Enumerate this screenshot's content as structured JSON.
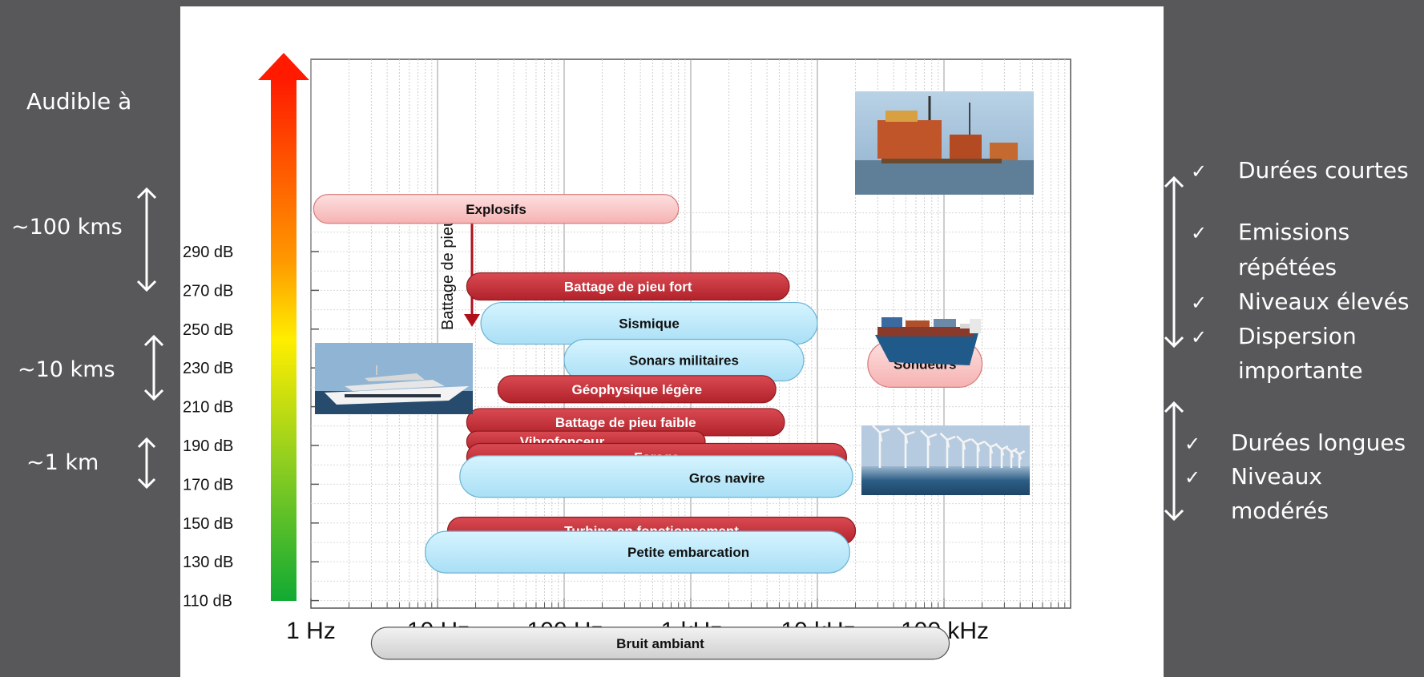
{
  "chart_data": {
    "type": "bar",
    "orientation": "horizontal-range",
    "xscale": "log",
    "x_ticks": [
      "1 Hz",
      "10 Hz",
      "100 Hz",
      "1 kHz",
      "10 kHz",
      "100 kHz"
    ],
    "y_ticks": [
      "110 dB",
      "130 dB",
      "150 dB",
      "170 dB",
      "190 dB",
      "210 dB",
      "230 dB",
      "250 dB",
      "270 dB",
      "290 dB"
    ],
    "y_label": "Battage de pieu",
    "grid": true,
    "colors": {
      "strong": "#c8323a",
      "blue": "#bfeafb",
      "pink": "#fbc9c9",
      "grey": "#dcdcdc",
      "page": "#58585a"
    },
    "sources": [
      {
        "label": "Explosifs",
        "color": "pink",
        "f_min": 1.05,
        "f_max": 800,
        "level_db": 312
      },
      {
        "label": "Battage de pieu fort",
        "color": "strong",
        "f_min": 17,
        "f_max": 6000,
        "level_db": 272
      },
      {
        "label": "Sismique",
        "color": "blue",
        "f_min": 22,
        "f_max": 10000,
        "level_db": 253
      },
      {
        "label": "Sonars militaires",
        "color": "blue",
        "f_min": 100,
        "f_max": 7800,
        "level_db": 234
      },
      {
        "label": "Géophysique légère",
        "color": "strong",
        "f_min": 30,
        "f_max": 4700,
        "level_db": 219
      },
      {
        "label": "Sondeurs",
        "color": "pink",
        "f_min": 25000,
        "f_max": 200000,
        "level_db": 232
      },
      {
        "label": "Battage de pieu faible",
        "color": "strong",
        "f_min": 17,
        "f_max": 5500,
        "level_db": 202
      },
      {
        "label": "Vibrofonceur",
        "color": "strong",
        "f_min": 17,
        "f_max": 1300,
        "level_db": 192
      },
      {
        "label": "Forage",
        "color": "strong",
        "f_min": 17,
        "f_max": 17000,
        "level_db": 184
      },
      {
        "label": "Gros navire",
        "color": "blue",
        "f_min": 15,
        "f_max": 19000,
        "level_db": 174
      },
      {
        "label": "Turbine en fonctionnement",
        "color": "strong",
        "f_min": 12,
        "f_max": 20000,
        "level_db": 146
      },
      {
        "label": "Petite embarcation",
        "color": "blue",
        "f_min": 8,
        "f_max": 18000,
        "level_db": 135
      },
      {
        "label": "Bruit ambiant",
        "color": "grey",
        "f_min": 3,
        "f_max": 110000,
        "level_db": 88
      }
    ]
  },
  "left_panel": {
    "title": "Audible à",
    "ranges": [
      "~100 kms",
      "~10 kms",
      "~1 km"
    ]
  },
  "right_panel": {
    "group_short": [
      "Durées courtes",
      "Emissions",
      "répétées",
      "Niveaux élevés",
      "Dispersion",
      "importante"
    ],
    "group_long": [
      "Durées longues",
      "Niveaux",
      "modérés"
    ]
  },
  "photos": [
    "oil-platform-photo",
    "container-ship-photo",
    "yacht-photo",
    "wind-farm-photo"
  ]
}
